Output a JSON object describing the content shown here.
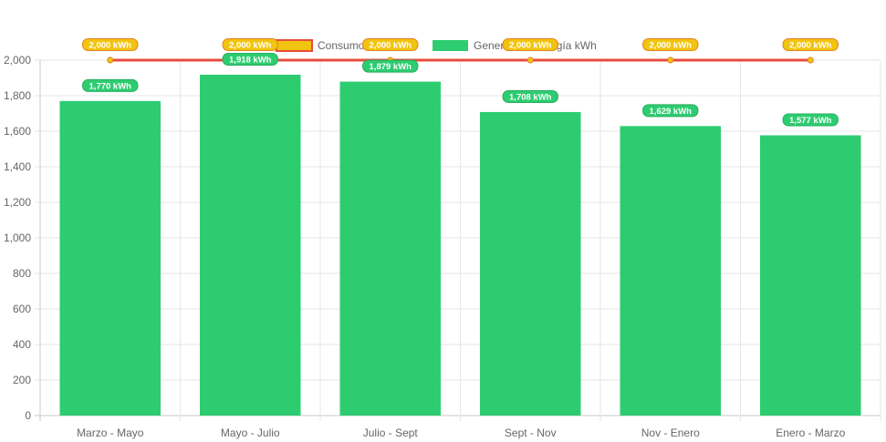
{
  "chart_data": {
    "type": "bar",
    "categories": [
      "Marzo - Mayo",
      "Mayo - Julio",
      "Julio - Sept",
      "Sept - Nov",
      "Nov - Enero",
      "Enero - Marzo"
    ],
    "series": [
      {
        "name": "Consumo kWh",
        "type": "line",
        "values": [
          2000,
          2000,
          2000,
          2000,
          2000,
          2000
        ],
        "labels": [
          "2,000 kWh",
          "2,000 kWh",
          "2,000 kWh",
          "2,000 kWh",
          "2,000 kWh",
          "2,000 kWh"
        ],
        "color": "#e74c3c",
        "point_color": "#f1c40f"
      },
      {
        "name": "Generación Energía kWh",
        "type": "bar",
        "values": [
          1770,
          1918,
          1879,
          1708,
          1629,
          1577
        ],
        "labels": [
          "1,770 kWh",
          "1,918 kWh",
          "1,879 kWh",
          "1,708 kWh",
          "1,629 kWh",
          "1,577 kWh"
        ],
        "color": "#2ecc71"
      }
    ],
    "y_ticks": [
      "0",
      "200",
      "400",
      "600",
      "800",
      "1,000",
      "1,200",
      "1,400",
      "1,600",
      "1,800",
      "2,000"
    ],
    "ylim": [
      0,
      2000
    ],
    "grid": true,
    "legend_position": "top-center",
    "title": "",
    "xlabel": "",
    "ylabel": ""
  }
}
